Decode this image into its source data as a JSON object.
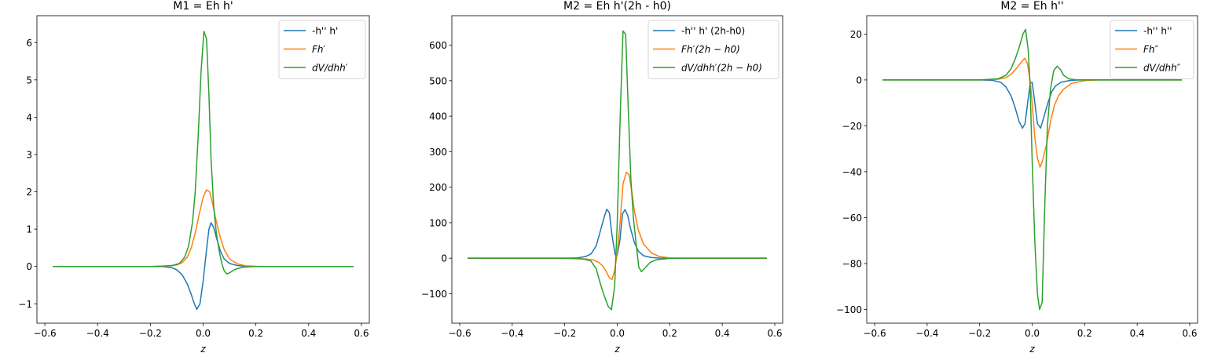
{
  "chart_data": [
    {
      "type": "line",
      "title": "M1 = Eh h'",
      "xlabel": "z",
      "ylabel": "",
      "xlim": [
        -0.63,
        0.63
      ],
      "ylim": [
        -1.52,
        6.72
      ],
      "xticks": [
        -0.6,
        -0.4,
        -0.2,
        0.0,
        0.2,
        0.4,
        0.6
      ],
      "xtick_labels": [
        "−0.6",
        "−0.4",
        "−0.2",
        "0.0",
        "0.2",
        "0.4",
        "0.6"
      ],
      "yticks": [
        -1,
        0,
        1,
        2,
        3,
        4,
        5,
        6
      ],
      "ytick_labels": [
        "−1",
        "0",
        "1",
        "2",
        "3",
        "4",
        "5",
        "6"
      ],
      "legend_position": "top-right",
      "series": [
        {
          "name": "-h'' h'",
          "color": "#1f77b4",
          "points": [
            [
              -0.57,
              0
            ],
            [
              -0.2,
              0
            ],
            [
              -0.15,
              -0.005
            ],
            [
              -0.12,
              -0.03
            ],
            [
              -0.1,
              -0.09
            ],
            [
              -0.08,
              -0.22
            ],
            [
              -0.06,
              -0.47
            ],
            [
              -0.045,
              -0.75
            ],
            [
              -0.035,
              -0.97
            ],
            [
              -0.024,
              -1.15
            ],
            [
              -0.012,
              -1.0
            ],
            [
              0.0,
              -0.4
            ],
            [
              0.012,
              0.4
            ],
            [
              0.022,
              1.0
            ],
            [
              0.03,
              1.17
            ],
            [
              0.04,
              1.05
            ],
            [
              0.05,
              0.78
            ],
            [
              0.065,
              0.42
            ],
            [
              0.08,
              0.2
            ],
            [
              0.1,
              0.08
            ],
            [
              0.13,
              0.025
            ],
            [
              0.16,
              0.006
            ],
            [
              0.2,
              0
            ],
            [
              0.57,
              0
            ]
          ]
        },
        {
          "name": "Fh'",
          "color": "#ff7f0e",
          "points": [
            [
              -0.57,
              0
            ],
            [
              -0.2,
              0
            ],
            [
              -0.15,
              0.005
            ],
            [
              -0.1,
              0.04
            ],
            [
              -0.08,
              0.1
            ],
            [
              -0.06,
              0.25
            ],
            [
              -0.045,
              0.5
            ],
            [
              -0.03,
              0.9
            ],
            [
              -0.015,
              1.4
            ],
            [
              0.0,
              1.85
            ],
            [
              0.012,
              2.05
            ],
            [
              0.025,
              2.0
            ],
            [
              0.037,
              1.65
            ],
            [
              0.05,
              1.2
            ],
            [
              0.065,
              0.78
            ],
            [
              0.08,
              0.45
            ],
            [
              0.1,
              0.2
            ],
            [
              0.13,
              0.07
            ],
            [
              0.16,
              0.02
            ],
            [
              0.2,
              0.005
            ],
            [
              0.25,
              0
            ],
            [
              0.57,
              0
            ]
          ]
        },
        {
          "name": "dV/dhh'",
          "color": "#2ca02c",
          "points": [
            [
              -0.57,
              0
            ],
            [
              -0.2,
              0
            ],
            [
              -0.12,
              0.02
            ],
            [
              -0.09,
              0.08
            ],
            [
              -0.07,
              0.25
            ],
            [
              -0.055,
              0.55
            ],
            [
              -0.04,
              1.2
            ],
            [
              -0.03,
              2.0
            ],
            [
              -0.018,
              3.6
            ],
            [
              -0.008,
              5.2
            ],
            [
              0.003,
              6.3
            ],
            [
              0.013,
              6.1
            ],
            [
              0.022,
              4.6
            ],
            [
              0.03,
              2.9
            ],
            [
              0.04,
              1.6
            ],
            [
              0.05,
              0.9
            ],
            [
              0.06,
              0.45
            ],
            [
              0.07,
              0.1
            ],
            [
              0.08,
              -0.12
            ],
            [
              0.09,
              -0.2
            ],
            [
              0.1,
              -0.17
            ],
            [
              0.12,
              -0.08
            ],
            [
              0.15,
              -0.02
            ],
            [
              0.2,
              0
            ],
            [
              0.57,
              0
            ]
          ]
        }
      ]
    },
    {
      "type": "line",
      "title": "M2 = Eh h'(2h - h0)",
      "xlabel": "z",
      "ylabel": "",
      "xlim": [
        -0.63,
        0.63
      ],
      "ylim": [
        -183,
        683
      ],
      "xticks": [
        -0.6,
        -0.4,
        -0.2,
        0.0,
        0.2,
        0.4,
        0.6
      ],
      "xtick_labels": [
        "−0.6",
        "−0.4",
        "−0.2",
        "0.0",
        "0.2",
        "0.4",
        "0.6"
      ],
      "yticks": [
        -100,
        0,
        100,
        200,
        300,
        400,
        500,
        600
      ],
      "ytick_labels": [
        "−100",
        "0",
        "100",
        "200",
        "300",
        "400",
        "500",
        "600"
      ],
      "legend_position": "top-right",
      "series": [
        {
          "name": "-h'' h' (2h-h0)",
          "color": "#1f77b4",
          "points": [
            [
              -0.57,
              0
            ],
            [
              -0.2,
              0
            ],
            [
              -0.15,
              1
            ],
            [
              -0.12,
              5
            ],
            [
              -0.1,
              12
            ],
            [
              -0.08,
              35
            ],
            [
              -0.065,
              75
            ],
            [
              -0.05,
              115
            ],
            [
              -0.04,
              138
            ],
            [
              -0.03,
              128
            ],
            [
              -0.02,
              65
            ],
            [
              -0.008,
              10
            ],
            [
              0.0,
              8
            ],
            [
              0.01,
              50
            ],
            [
              0.02,
              125
            ],
            [
              0.03,
              137
            ],
            [
              0.04,
              120
            ],
            [
              0.05,
              85
            ],
            [
              0.065,
              45
            ],
            [
              0.08,
              20
            ],
            [
              0.1,
              7
            ],
            [
              0.13,
              2
            ],
            [
              0.16,
              0.5
            ],
            [
              0.2,
              0
            ],
            [
              0.57,
              0
            ]
          ]
        },
        {
          "name": "$Fh'(2h-h0)$",
          "label_lead": "Fh′(2",
          "label_h": "h",
          "label_mid": " − ",
          "label_tail": "h0)",
          "color": "#ff7f0e",
          "points": [
            [
              -0.57,
              0
            ],
            [
              -0.2,
              0
            ],
            [
              -0.12,
              -2
            ],
            [
              -0.09,
              -5
            ],
            [
              -0.07,
              -12
            ],
            [
              -0.055,
              -22
            ],
            [
              -0.04,
              -40
            ],
            [
              -0.03,
              -55
            ],
            [
              -0.02,
              -60
            ],
            [
              -0.01,
              -35
            ],
            [
              0.0,
              15
            ],
            [
              0.012,
              110
            ],
            [
              0.022,
              210
            ],
            [
              0.035,
              242
            ],
            [
              0.045,
              235
            ],
            [
              0.055,
              190
            ],
            [
              0.065,
              135
            ],
            [
              0.08,
              80
            ],
            [
              0.1,
              40
            ],
            [
              0.13,
              15
            ],
            [
              0.16,
              5
            ],
            [
              0.2,
              1
            ],
            [
              0.25,
              0
            ],
            [
              0.57,
              0
            ]
          ]
        },
        {
          "name": "$dV/dhh'(2h-h0)$",
          "label_lead": "dV/dhh′(2",
          "label_h": "h",
          "label_mid": " − ",
          "label_tail": "h0)",
          "color": "#2ca02c",
          "points": [
            [
              -0.57,
              0
            ],
            [
              -0.2,
              0
            ],
            [
              -0.13,
              -2
            ],
            [
              -0.1,
              -8
            ],
            [
              -0.08,
              -30
            ],
            [
              -0.065,
              -70
            ],
            [
              -0.05,
              -105
            ],
            [
              -0.035,
              -135
            ],
            [
              -0.022,
              -145
            ],
            [
              -0.01,
              -80
            ],
            [
              0.0,
              100
            ],
            [
              0.012,
              420
            ],
            [
              0.022,
              640
            ],
            [
              0.032,
              630
            ],
            [
              0.042,
              420
            ],
            [
              0.052,
              220
            ],
            [
              0.062,
              110
            ],
            [
              0.072,
              40
            ],
            [
              0.082,
              -25
            ],
            [
              0.092,
              -38
            ],
            [
              0.105,
              -28
            ],
            [
              0.125,
              -12
            ],
            [
              0.15,
              -4
            ],
            [
              0.2,
              -0.5
            ],
            [
              0.25,
              0
            ],
            [
              0.57,
              0
            ]
          ]
        }
      ]
    },
    {
      "type": "line",
      "title": "M2 = Eh h''",
      "xlabel": "z",
      "ylabel": "",
      "xlim": [
        -0.63,
        0.63
      ],
      "ylim": [
        -106,
        28
      ],
      "xticks": [
        -0.6,
        -0.4,
        -0.2,
        0.0,
        0.2,
        0.4,
        0.6
      ],
      "xtick_labels": [
        "−0.6",
        "−0.4",
        "−0.2",
        "0.0",
        "0.2",
        "0.4",
        "0.6"
      ],
      "yticks": [
        -100,
        -80,
        -60,
        -40,
        -20,
        0,
        20
      ],
      "ytick_labels": [
        "−100",
        "−80",
        "−60",
        "−40",
        "−20",
        "0",
        "20"
      ],
      "legend_position": "top-right",
      "series": [
        {
          "name": "-h'' h''",
          "color": "#1f77b4",
          "points": [
            [
              -0.57,
              0
            ],
            [
              -0.2,
              0
            ],
            [
              -0.15,
              -0.2
            ],
            [
              -0.12,
              -1
            ],
            [
              -0.1,
              -3
            ],
            [
              -0.08,
              -7
            ],
            [
              -0.065,
              -12
            ],
            [
              -0.05,
              -18
            ],
            [
              -0.037,
              -21
            ],
            [
              -0.027,
              -19
            ],
            [
              -0.015,
              -8
            ],
            [
              -0.007,
              -1.5
            ],
            [
              0.0,
              -1
            ],
            [
              0.008,
              -8
            ],
            [
              0.02,
              -19
            ],
            [
              0.032,
              -21
            ],
            [
              0.045,
              -16
            ],
            [
              0.06,
              -10
            ],
            [
              0.075,
              -5
            ],
            [
              0.09,
              -2.5
            ],
            [
              0.11,
              -1
            ],
            [
              0.14,
              -0.3
            ],
            [
              0.18,
              0
            ],
            [
              0.57,
              0
            ]
          ]
        },
        {
          "name": "Fh''",
          "color": "#ff7f0e",
          "points": [
            [
              -0.57,
              0
            ],
            [
              -0.2,
              0
            ],
            [
              -0.13,
              0.3
            ],
            [
              -0.1,
              1
            ],
            [
              -0.08,
              2.5
            ],
            [
              -0.06,
              5
            ],
            [
              -0.04,
              8
            ],
            [
              -0.028,
              9.5
            ],
            [
              -0.018,
              7
            ],
            [
              -0.008,
              0
            ],
            [
              0.0,
              -10
            ],
            [
              0.01,
              -25
            ],
            [
              0.02,
              -34
            ],
            [
              0.03,
              -38
            ],
            [
              0.04,
              -35
            ],
            [
              0.055,
              -28
            ],
            [
              0.07,
              -18
            ],
            [
              0.085,
              -11
            ],
            [
              0.1,
              -7
            ],
            [
              0.12,
              -4
            ],
            [
              0.15,
              -1.5
            ],
            [
              0.2,
              -0.3
            ],
            [
              0.25,
              0
            ],
            [
              0.57,
              0
            ]
          ]
        },
        {
          "name": "dV/dhh''",
          "color": "#2ca02c",
          "points": [
            [
              -0.57,
              0
            ],
            [
              -0.2,
              0
            ],
            [
              -0.13,
              0.5
            ],
            [
              -0.1,
              2
            ],
            [
              -0.08,
              5
            ],
            [
              -0.065,
              9
            ],
            [
              -0.05,
              14
            ],
            [
              -0.035,
              20
            ],
            [
              -0.025,
              22
            ],
            [
              -0.015,
              13
            ],
            [
              -0.008,
              -2
            ],
            [
              0.0,
              -35
            ],
            [
              0.01,
              -70
            ],
            [
              0.02,
              -93
            ],
            [
              0.028,
              -100
            ],
            [
              0.038,
              -97
            ],
            [
              0.048,
              -55
            ],
            [
              0.058,
              -20
            ],
            [
              0.07,
              -4
            ],
            [
              0.082,
              4
            ],
            [
              0.095,
              6
            ],
            [
              0.108,
              4.5
            ],
            [
              0.12,
              2
            ],
            [
              0.14,
              0.5
            ],
            [
              0.17,
              0
            ],
            [
              0.57,
              0
            ]
          ]
        }
      ]
    }
  ]
}
